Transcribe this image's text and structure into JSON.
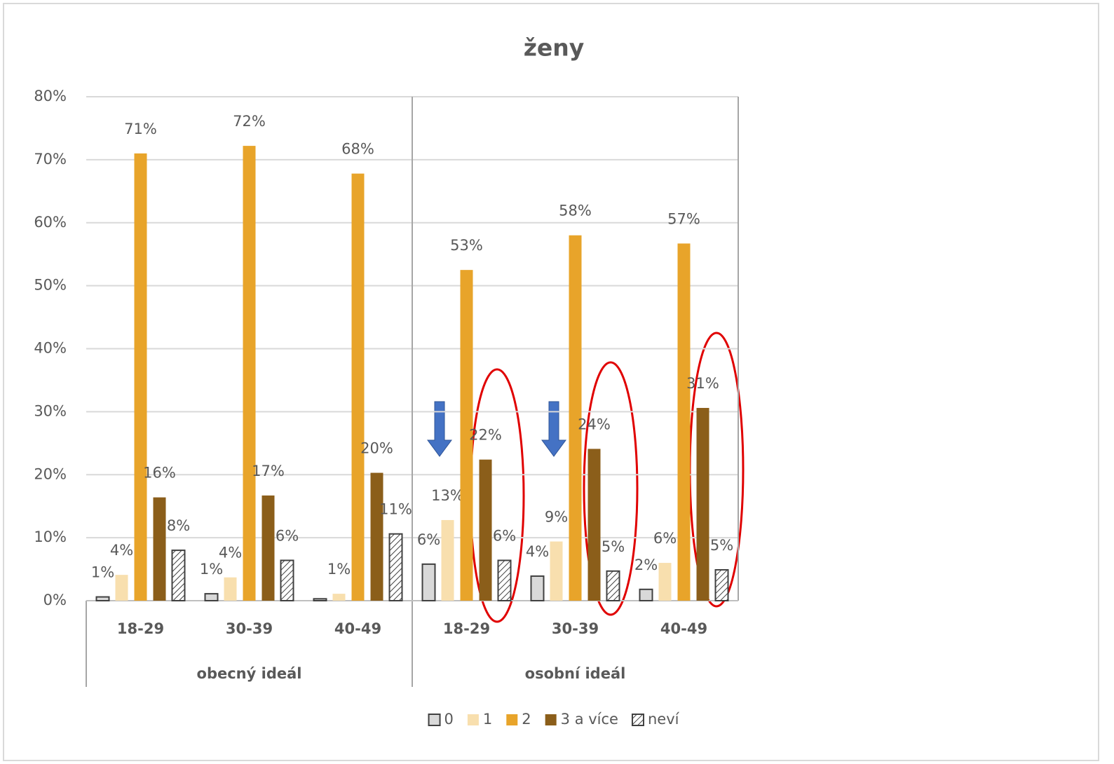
{
  "chart_data": {
    "type": "bar",
    "title": "ženy",
    "categories": [
      "18-29",
      "30-39",
      "40-49",
      "18-29",
      "30-39",
      "40-49"
    ],
    "groups": [
      "obecný ideál",
      "osobní ideál"
    ],
    "series": [
      {
        "name": "0",
        "color": "#d9d9d9",
        "values": [
          0.6,
          1.1,
          0.3,
          5.8,
          3.9,
          1.8
        ],
        "value_labels": [
          "1%",
          "1%",
          null,
          "6%",
          "4%",
          "2%"
        ]
      },
      {
        "name": "1",
        "color": "#f8dfae",
        "values": [
          4.1,
          3.7,
          1.1,
          12.8,
          9.4,
          6.0
        ],
        "value_labels": [
          "4%",
          "4%",
          "1%",
          "13%",
          "9%",
          "6%"
        ]
      },
      {
        "name": "2",
        "color": "#e8a42a",
        "values": [
          71,
          72.2,
          67.8,
          52.5,
          58,
          56.7
        ],
        "value_labels": [
          "71%",
          "72%",
          "68%",
          "53%",
          "58%",
          "57%"
        ]
      },
      {
        "name": "3 a více",
        "color": "#8b5e1a",
        "values": [
          16.4,
          16.7,
          20.3,
          22.4,
          24.1,
          30.6
        ],
        "value_labels": [
          "16%",
          "17%",
          "20%",
          "22%",
          "24%",
          "31%"
        ]
      },
      {
        "name": "neví",
        "color": "#404040",
        "pattern": "hatch",
        "values": [
          8,
          6.4,
          10.6,
          6.4,
          4.7,
          4.9
        ],
        "value_labels": [
          "8%",
          "6%",
          "11%",
          "6%",
          "5%",
          "5%"
        ]
      }
    ],
    "ylim": [
      0,
      80
    ],
    "yticks": [
      {
        "value": 0,
        "label": "0%"
      },
      {
        "value": 10,
        "label": "10%"
      },
      {
        "value": 20,
        "label": "20%"
      },
      {
        "value": 30,
        "label": "30%"
      },
      {
        "value": 40,
        "label": "40%"
      },
      {
        "value": 50,
        "label": "50%"
      },
      {
        "value": 60,
        "label": "60%"
      },
      {
        "value": 70,
        "label": "70%"
      },
      {
        "value": 80,
        "label": "80%"
      }
    ],
    "grid": true,
    "legend": "bottom"
  }
}
